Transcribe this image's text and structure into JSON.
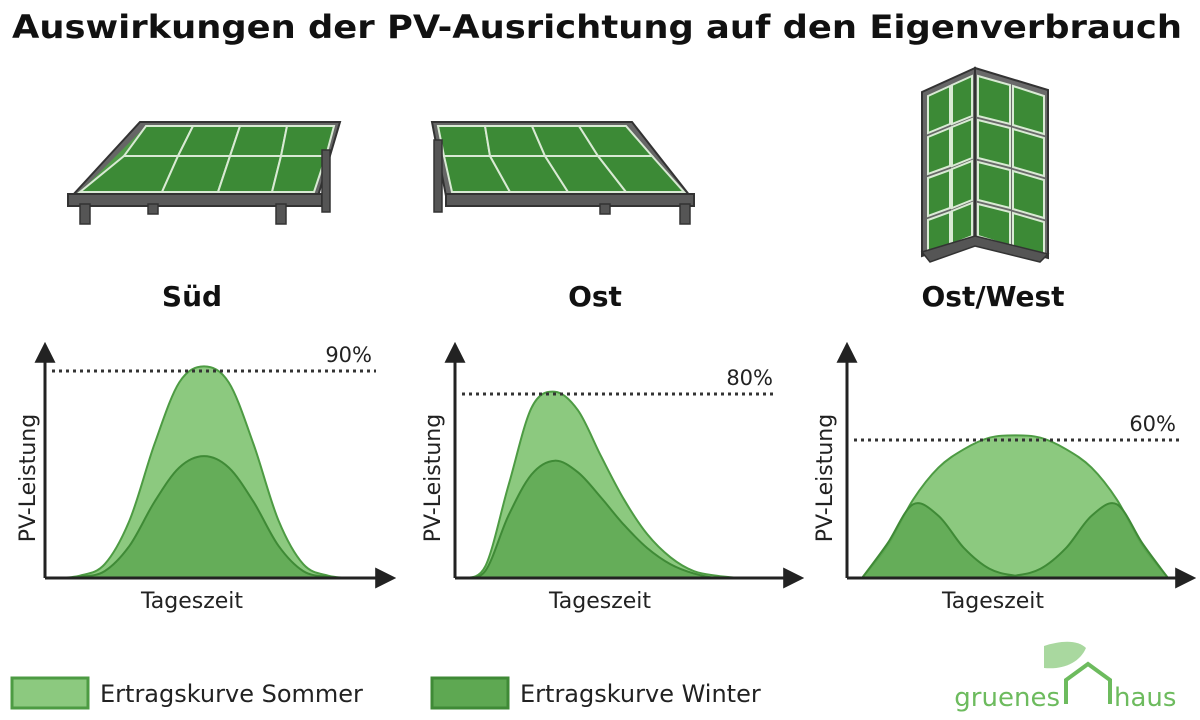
{
  "title": "Auswirkungen der PV-Ausrichtung auf den Eigenverbrauch",
  "colors": {
    "summer_fill": "#8cc97f",
    "summer_stroke": "#4d9b43",
    "winter_fill": "#5ea852",
    "winter_stroke": "#3f8a36",
    "panel_frame": "#555555",
    "panel_cell": "#3f8f3a",
    "logo": "#6dbb5e"
  },
  "legend": {
    "summer": "Ertragskurve Sommer",
    "winter": "Ertragskurve Winter"
  },
  "logo": {
    "left": "gruenes",
    "right": "haus"
  },
  "chart_data": [
    {
      "type": "area",
      "title": "Süd",
      "xlabel": "Tageszeit",
      "ylabel": "PV-Leistung",
      "reference_line": {
        "value": 90,
        "label": "90%"
      },
      "series": [
        {
          "name": "Ertragskurve Sommer",
          "x": [
            0,
            2,
            4,
            6,
            8,
            10,
            12,
            14,
            16,
            18,
            20,
            22,
            24
          ],
          "values": [
            0,
            1,
            6,
            25,
            58,
            85,
            92,
            85,
            58,
            25,
            6,
            1,
            0
          ]
        },
        {
          "name": "Ertragskurve Winter",
          "x": [
            0,
            2,
            4,
            6,
            8,
            10,
            12,
            14,
            16,
            18,
            20,
            22,
            24
          ],
          "values": [
            0,
            0.5,
            3,
            14,
            33,
            48,
            53,
            48,
            33,
            14,
            3,
            0.5,
            0
          ]
        }
      ]
    },
    {
      "type": "area",
      "title": "Ost",
      "xlabel": "Tageszeit",
      "ylabel": "PV-Leistung",
      "reference_line": {
        "value": 80,
        "label": "80%"
      },
      "series": [
        {
          "name": "Ertragskurve Sommer",
          "x": [
            0,
            2,
            4,
            6,
            8,
            10,
            12,
            14,
            16,
            18,
            20,
            22,
            24
          ],
          "values": [
            0,
            5,
            40,
            74,
            81,
            73,
            53,
            34,
            19,
            9,
            3,
            1,
            0
          ]
        },
        {
          "name": "Ertragskurve Winter",
          "x": [
            0,
            2,
            4,
            6,
            8,
            10,
            12,
            14,
            16,
            18,
            20,
            22,
            24
          ],
          "values": [
            0,
            3,
            27,
            45,
            51,
            46,
            35,
            23,
            13,
            6,
            2,
            0,
            0
          ]
        }
      ]
    },
    {
      "type": "area",
      "title": "Ost/West",
      "xlabel": "Tageszeit",
      "ylabel": "PV-Leistung",
      "reference_line": {
        "value": 60,
        "label": "60%"
      },
      "series": [
        {
          "name": "Ertragskurve Sommer",
          "x": [
            0,
            2,
            4,
            6,
            8,
            10,
            12,
            14,
            16,
            18,
            20,
            22,
            24
          ],
          "values": [
            0,
            14,
            34,
            48,
            56,
            61,
            62,
            61,
            56,
            48,
            34,
            14,
            0
          ]
        },
        {
          "name": "Ertragskurve Winter",
          "x": [
            0,
            2,
            4,
            6,
            8,
            10,
            12,
            14,
            16,
            18,
            20,
            22,
            24
          ],
          "values": [
            0,
            15,
            32,
            27,
            13,
            4,
            1,
            0,
            0,
            0,
            0,
            0,
            0
          ]
        },
        {
          "name": "Ertragskurve Winter",
          "x": [
            0,
            2,
            4,
            6,
            8,
            10,
            12,
            14,
            16,
            18,
            20,
            22,
            24
          ],
          "values": [
            0,
            0,
            0,
            0,
            0,
            0,
            1,
            4,
            13,
            27,
            32,
            15,
            0
          ]
        }
      ]
    }
  ]
}
